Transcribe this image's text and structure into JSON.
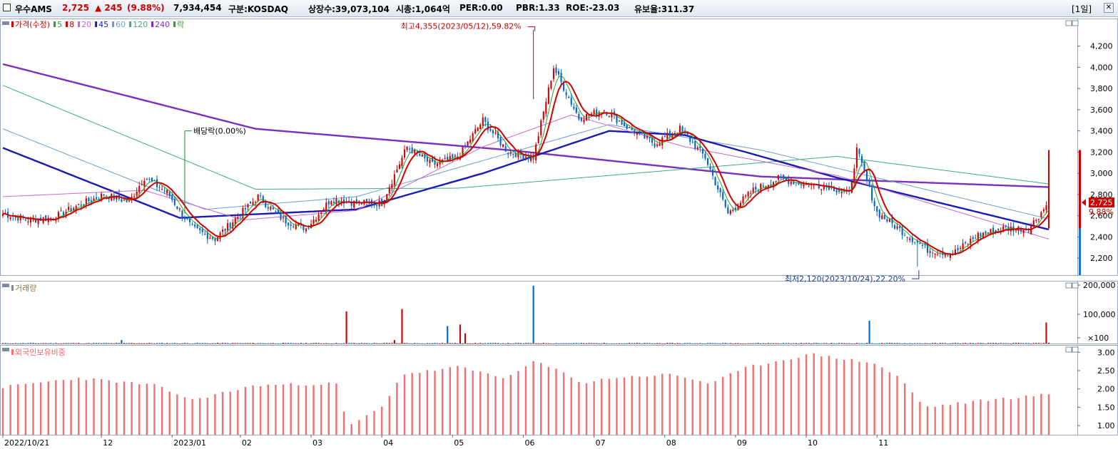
{
  "header": {
    "stock_name": "우수AMS",
    "price": "2,725",
    "change": "▲ 245",
    "change_pct": "(9.88%)",
    "volume": "7,934,454",
    "market": "구분:KOSDAQ",
    "shares": "상장수:39,073,104",
    "market_cap": "시총:1,064억",
    "per": "PER:0.00",
    "pbr": "PBR:1.33",
    "roe": "ROE:-23.03",
    "reserve": "유보율:311.37",
    "period": "[1일]",
    "close_label": "✕",
    "up_color": "#d00000",
    "down_color": "#0066cc"
  },
  "chart_data": [
    {
      "type": "candlestick",
      "panel": "price",
      "legend": [
        {
          "label": "가격(수정)",
          "color": "#d00000"
        },
        {
          "label": "5",
          "color": "#2ba02b"
        },
        {
          "label": "8",
          "color": "#d00000"
        },
        {
          "label": "20",
          "color": "#cc66cc"
        },
        {
          "label": "45",
          "color": "#1a1ab4"
        },
        {
          "label": "60",
          "color": "#6aa0c8"
        },
        {
          "label": "120",
          "color": "#3aaa8a"
        },
        {
          "label": "240",
          "color": "#7b2fbe"
        },
        {
          "label": "락",
          "color": "#2ba02b"
        }
      ],
      "x_ticks": [
        "2022/10/21",
        "12",
        "2023/01",
        "02",
        "03",
        "04",
        "05",
        "06",
        "07",
        "08",
        "09",
        "10",
        "11"
      ],
      "y_ticks": [
        "4,200",
        "4,000",
        "3,800",
        "3,600",
        "3,400",
        "3,200",
        "3,000",
        "2,800",
        "2,600",
        "2,400",
        "2,200"
      ],
      "ylim": [
        2040,
        4460
      ],
      "close_path": [
        [
          0,
          2620
        ],
        [
          10,
          2560
        ],
        [
          20,
          2580
        ],
        [
          30,
          2700
        ],
        [
          40,
          2800
        ],
        [
          50,
          2730
        ],
        [
          56,
          2960
        ],
        [
          65,
          2820
        ],
        [
          75,
          2480
        ],
        [
          84,
          2380
        ],
        [
          92,
          2570
        ],
        [
          101,
          2780
        ],
        [
          111,
          2560
        ],
        [
          120,
          2480
        ],
        [
          130,
          2760
        ],
        [
          140,
          2720
        ],
        [
          150,
          2720
        ],
        [
          160,
          3250
        ],
        [
          170,
          3080
        ],
        [
          180,
          3150
        ],
        [
          190,
          3500
        ],
        [
          200,
          3200
        ],
        [
          210,
          3150
        ],
        [
          218,
          4000
        ],
        [
          228,
          3520
        ],
        [
          238,
          3600
        ],
        [
          248,
          3420
        ],
        [
          258,
          3280
        ],
        [
          268,
          3420
        ],
        [
          278,
          3150
        ],
        [
          287,
          2620
        ],
        [
          297,
          2840
        ],
        [
          307,
          2950
        ],
        [
          317,
          2900
        ],
        [
          327,
          2880
        ],
        [
          335,
          2800
        ],
        [
          338,
          3220
        ],
        [
          346,
          2630
        ],
        [
          356,
          2450
        ],
        [
          366,
          2280
        ],
        [
          376,
          2240
        ],
        [
          386,
          2420
        ],
        [
          396,
          2480
        ],
        [
          406,
          2480
        ],
        [
          414,
          2725
        ]
      ],
      "moving_averages": [
        {
          "period": "240",
          "values": [
            [
              0,
              4030
            ],
            [
              100,
              3420
            ],
            [
              200,
              3220
            ],
            [
              300,
              2970
            ],
            [
              414,
              2870
            ]
          ]
        },
        {
          "period": "120",
          "values": [
            [
              0,
              3830
            ],
            [
              100,
              2850
            ],
            [
              180,
              2860
            ],
            [
              260,
              3020
            ],
            [
              330,
              3160
            ],
            [
              414,
              2900
            ]
          ]
        },
        {
          "period": "60",
          "values": [
            [
              0,
              3420
            ],
            [
              80,
              2660
            ],
            [
              140,
              2780
            ],
            [
              240,
              3460
            ],
            [
              300,
              3220
            ],
            [
              414,
              2570
            ]
          ]
        },
        {
          "period": "45",
          "values": [
            [
              0,
              3240
            ],
            [
              70,
              2580
            ],
            [
              140,
              2660
            ],
            [
              190,
              3000
            ],
            [
              240,
              3400
            ],
            [
              270,
              3360
            ],
            [
              330,
              2960
            ],
            [
              414,
              2470
            ]
          ]
        },
        {
          "period": "20",
          "values": [
            [
              0,
              2780
            ],
            [
              56,
              2840
            ],
            [
              95,
              2560
            ],
            [
              140,
              2650
            ],
            [
              190,
              3250
            ],
            [
              225,
              3550
            ],
            [
              270,
              3250
            ],
            [
              330,
              2980
            ],
            [
              414,
              2380
            ]
          ]
        }
      ],
      "annotations": {
        "high": "최고4,355(2023/05/12),59.82%",
        "low": "최저2,120(2023/10/24),22.20%",
        "dividend": "배당락(0.00%)",
        "last_price": "2,725",
        "last_change": "9.88%"
      }
    },
    {
      "type": "bar",
      "panel": "volume",
      "title": "거래량",
      "y_ticks": [
        "200,000",
        "100,000",
        "×100"
      ],
      "ylim": [
        0,
        200000
      ],
      "spikes": [
        [
          47,
          12000
        ],
        [
          136,
          110000
        ],
        [
          155,
          12000
        ],
        [
          158,
          118000
        ],
        [
          176,
          60000
        ],
        [
          181,
          65000
        ],
        [
          183,
          35000
        ],
        [
          210,
          198000
        ],
        [
          343,
          78000
        ],
        [
          413,
          72000
        ]
      ]
    },
    {
      "type": "bar",
      "panel": "foreign_ownership",
      "title": "외국인보유비중",
      "y_ticks": [
        "3.00",
        "2.50",
        "2.00",
        "1.50",
        "1.00"
      ],
      "ylim": [
        0.75,
        3.2
      ],
      "values": [
        [
          0,
          2.05
        ],
        [
          30,
          2.3
        ],
        [
          60,
          2.1
        ],
        [
          75,
          1.7
        ],
        [
          100,
          2.1
        ],
        [
          133,
          2.15
        ],
        [
          136,
          0.95
        ],
        [
          150,
          1.5
        ],
        [
          158,
          2.4
        ],
        [
          170,
          2.5
        ],
        [
          180,
          2.6
        ],
        [
          200,
          2.3
        ],
        [
          210,
          2.75
        ],
        [
          220,
          2.5
        ],
        [
          230,
          2.15
        ],
        [
          240,
          2.3
        ],
        [
          265,
          2.4
        ],
        [
          280,
          2.15
        ],
        [
          295,
          2.6
        ],
        [
          320,
          2.95
        ],
        [
          345,
          2.7
        ],
        [
          355,
          2.3
        ],
        [
          365,
          1.5
        ],
        [
          390,
          1.7
        ],
        [
          414,
          1.85
        ]
      ]
    }
  ]
}
